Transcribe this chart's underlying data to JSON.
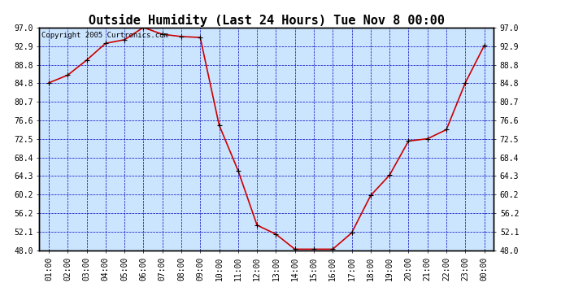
{
  "title": "Outside Humidity (Last 24 Hours) Tue Nov 8 00:00",
  "copyright": "Copyright 2005 Curtronics.com",
  "x_labels": [
    "01:00",
    "02:00",
    "03:00",
    "04:00",
    "05:00",
    "06:00",
    "07:00",
    "08:00",
    "09:00",
    "10:00",
    "11:00",
    "12:00",
    "13:00",
    "14:00",
    "15:00",
    "16:00",
    "17:00",
    "18:00",
    "19:00",
    "20:00",
    "21:00",
    "22:00",
    "23:00",
    "00:00"
  ],
  "y_values": [
    84.8,
    86.5,
    89.8,
    93.5,
    94.3,
    97.0,
    95.5,
    95.0,
    94.8,
    75.5,
    65.5,
    53.5,
    51.5,
    48.2,
    48.2,
    48.2,
    51.8,
    60.0,
    64.5,
    72.0,
    72.5,
    74.5,
    84.8,
    93.0
  ],
  "line_color": "#cc0000",
  "marker_color": "#000000",
  "bg_color": "#cce5ff",
  "grid_color": "#0000bb",
  "ytick_labels": [
    "48.0",
    "52.1",
    "56.2",
    "60.2",
    "64.3",
    "68.4",
    "72.5",
    "76.6",
    "80.7",
    "84.8",
    "88.8",
    "92.9",
    "97.0"
  ],
  "ytick_values": [
    48.0,
    52.1,
    56.2,
    60.2,
    64.3,
    68.4,
    72.5,
    76.6,
    80.7,
    84.8,
    88.8,
    92.9,
    97.0
  ],
  "ymin": 48.0,
  "ymax": 97.0,
  "title_fontsize": 11,
  "copyright_fontsize": 6.5,
  "tick_fontsize": 7
}
